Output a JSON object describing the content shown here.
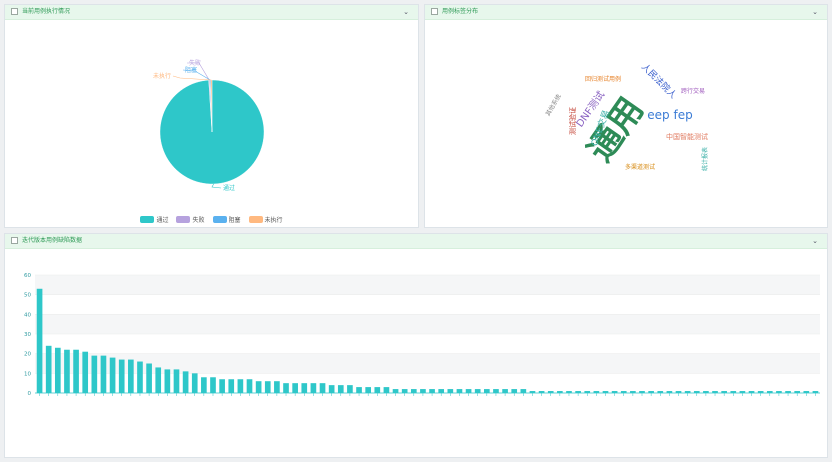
{
  "panels": {
    "pie": {
      "title": "当前用例执行情况",
      "chevron": "⌄"
    },
    "wordcloud": {
      "title": "用例标签分布",
      "chevron": "⌄"
    },
    "bar": {
      "title": "迭代版本用例缺陷数据",
      "chevron": "⌄"
    }
  },
  "colors": {
    "pass": "#2ec7c9",
    "fail": "#b6a2de",
    "blocked": "#5ab1ef",
    "notrun": "#ffb980",
    "accent": "#2e9a56"
  },
  "chart_data": [
    {
      "type": "pie",
      "series": [
        {
          "name": "通过",
          "value": 99.0
        },
        {
          "name": "失败",
          "value": 0.3
        },
        {
          "name": "阻塞",
          "value": 0.3
        },
        {
          "name": "未执行",
          "value": 0.4
        }
      ],
      "legend": [
        "通过",
        "失败",
        "阻塞",
        "未执行"
      ],
      "legend_position": "bottom"
    },
    {
      "type": "wordcloud",
      "words": [
        {
          "text": "通用",
          "weight": 10,
          "color": "#2e8b57"
        },
        {
          "text": "eep fep",
          "weight": 5,
          "color": "#3a7bd5"
        },
        {
          "text": "DNF测试",
          "weight": 4,
          "color": "#8a63c2"
        },
        {
          "text": "人民法院人",
          "weight": 4,
          "color": "#3a5fcd"
        },
        {
          "text": "ONE交易",
          "weight": 3,
          "color": "#3bb0a8"
        },
        {
          "text": "中国智能测试",
          "weight": 3,
          "color": "#e07a5f"
        },
        {
          "text": "测试验证",
          "weight": 3,
          "color": "#c0392b"
        },
        {
          "text": "其他系统",
          "weight": 3,
          "color": "#888"
        },
        {
          "text": "跨行交易",
          "weight": 2,
          "color": "#a25fbf"
        },
        {
          "text": "统计报表",
          "weight": 2,
          "color": "#3bb0a8"
        },
        {
          "text": "多渠道测试",
          "weight": 2,
          "color": "#d68910"
        },
        {
          "text": "回归测试用例",
          "weight": 2,
          "color": "#e67e22"
        }
      ]
    },
    {
      "type": "bar",
      "ylim": [
        0,
        60
      ],
      "yticks": [
        0,
        10,
        20,
        30,
        40,
        50,
        60
      ],
      "grid": true,
      "values": [
        53,
        24,
        23,
        22,
        22,
        21,
        19,
        19,
        18,
        17,
        17,
        16,
        15,
        13,
        12,
        12,
        11,
        10,
        8,
        8,
        7,
        7,
        7,
        7,
        6,
        6,
        6,
        5,
        5,
        5,
        5,
        5,
        4,
        4,
        4,
        3,
        3,
        3,
        3,
        2,
        2,
        2,
        2,
        2,
        2,
        2,
        2,
        2,
        2,
        2,
        2,
        2,
        2,
        2,
        1,
        1,
        1,
        1,
        1,
        1,
        1,
        1,
        1,
        1,
        1,
        1,
        1,
        1,
        1,
        1,
        1,
        1,
        1,
        1,
        1,
        1,
        1,
        1,
        1,
        1,
        1,
        1,
        1,
        1,
        1,
        1
      ],
      "color": "#2ec7c9"
    }
  ]
}
